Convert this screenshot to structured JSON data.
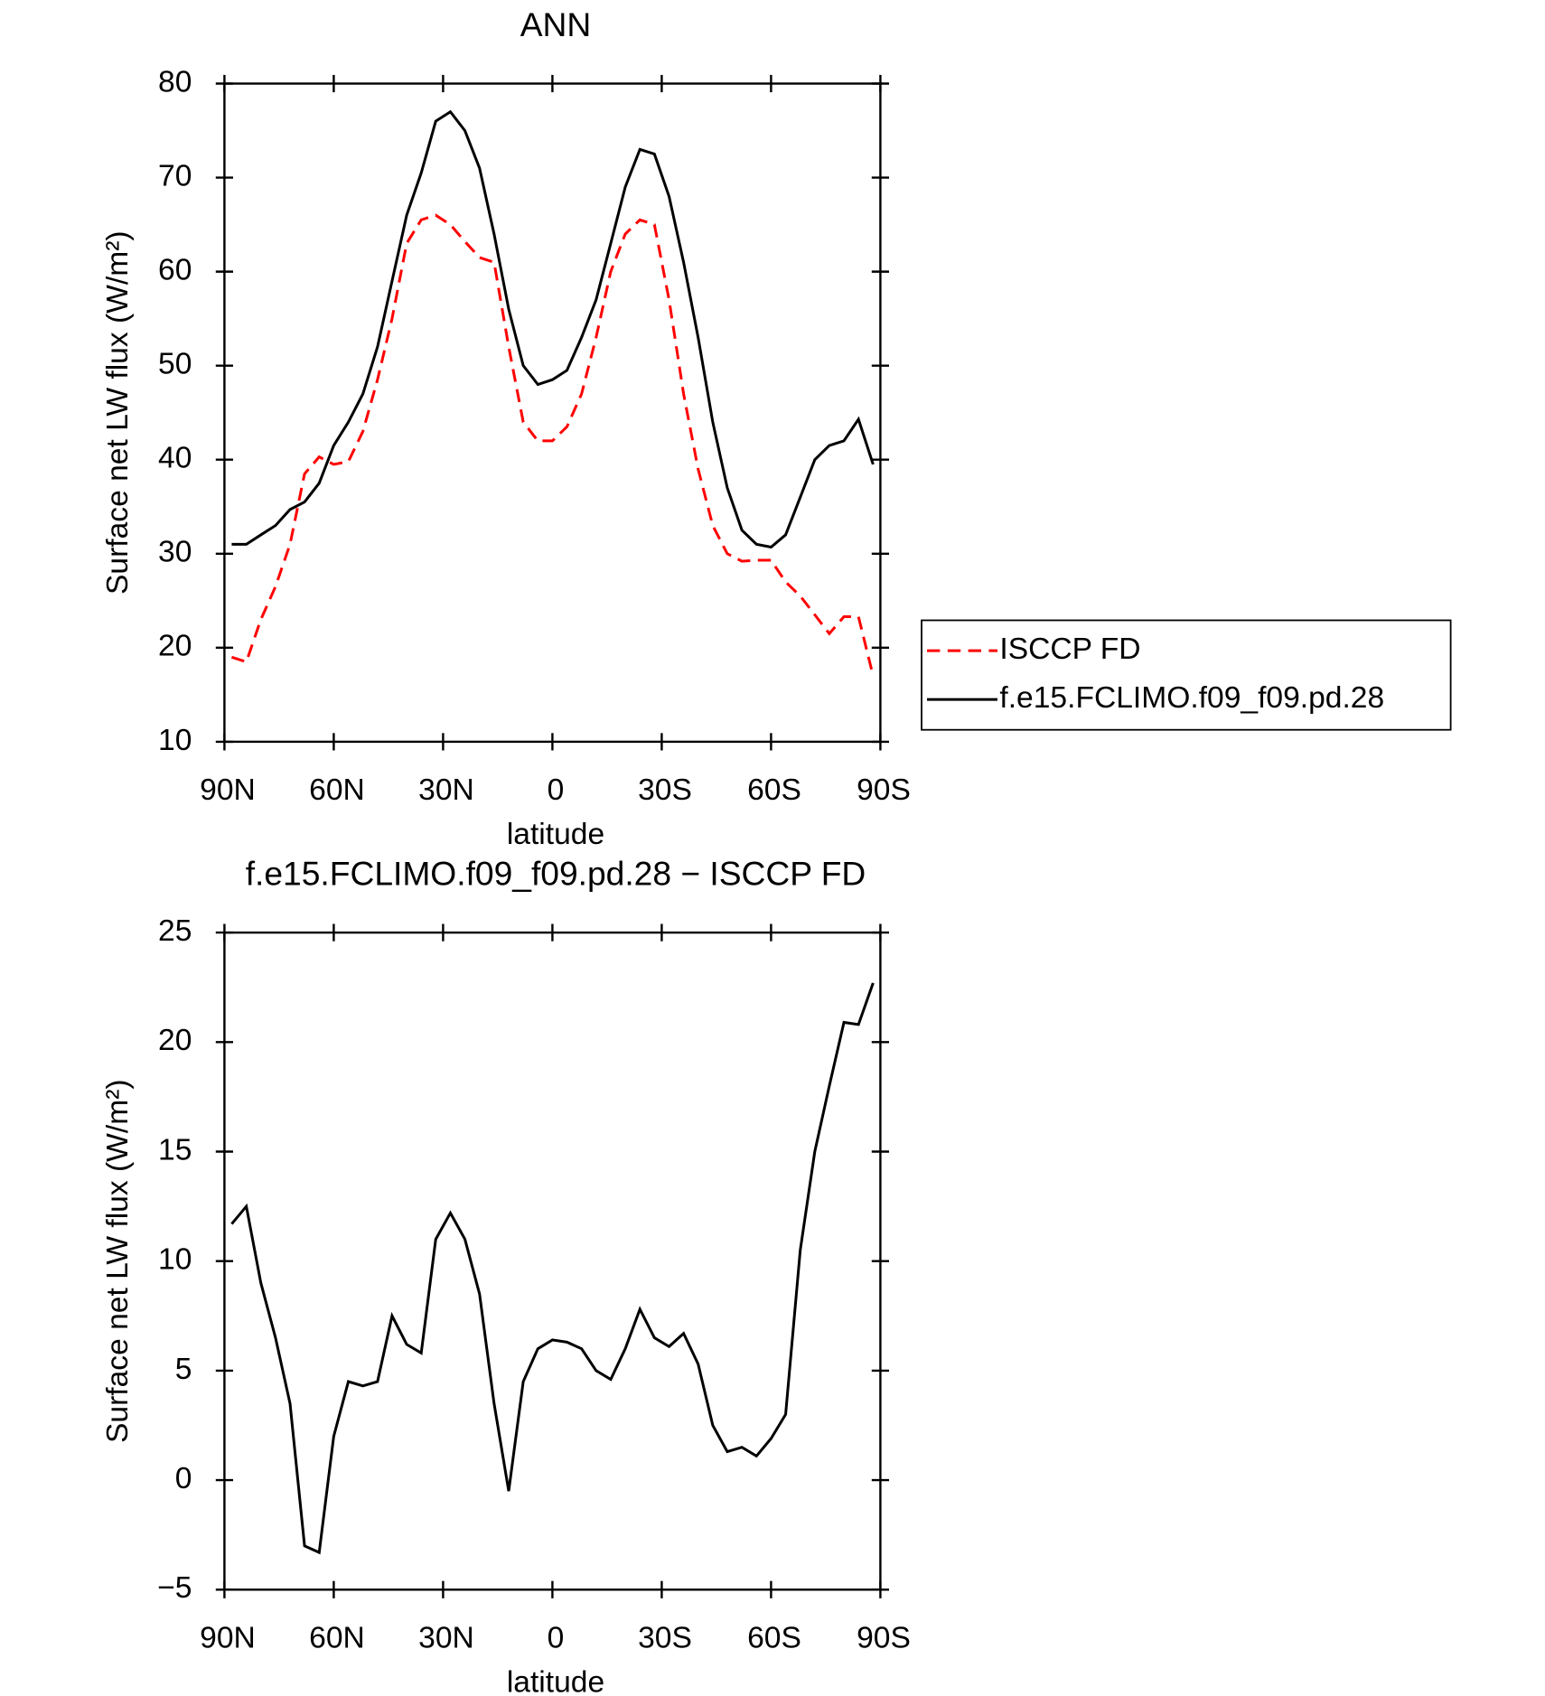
{
  "chart_data": [
    {
      "type": "line",
      "title": "ANN",
      "xlabel": "latitude",
      "ylabel": "Surface net LW flux (W/m²)",
      "x": [
        88,
        84,
        80,
        76,
        72,
        68,
        64,
        60,
        56,
        52,
        48,
        44,
        40,
        36,
        32,
        28,
        24,
        20,
        16,
        12,
        8,
        4,
        0,
        -4,
        -8,
        -12,
        -16,
        -20,
        -24,
        -28,
        -32,
        -36,
        -40,
        -44,
        -48,
        -52,
        -56,
        -60,
        -64,
        -68,
        -72,
        -76,
        -80,
        -84,
        -88
      ],
      "series": [
        {
          "name": "ISCCP FD",
          "color": "#ff0000",
          "dash": "dashed",
          "values": [
            19,
            18.5,
            23,
            26.5,
            31,
            38.5,
            40.3,
            39.5,
            39.8,
            43,
            48.5,
            55,
            63,
            65.5,
            66,
            65,
            63.2,
            61.5,
            61,
            52,
            44,
            42,
            42,
            43.5,
            47,
            53,
            60,
            64,
            65.5,
            65,
            57,
            47,
            39,
            33,
            30,
            29.2,
            29.3,
            29.3,
            27,
            25.5,
            23.5,
            21.5,
            23.3,
            23.3,
            17
          ]
        },
        {
          "name": "f.e15.FCLIMO.f09_f09.pd.28",
          "color": "#000000",
          "dash": "solid",
          "values": [
            31,
            31,
            32,
            33,
            34.7,
            35.5,
            37.5,
            41.5,
            44,
            47,
            52,
            59,
            66,
            70.5,
            76,
            77,
            75,
            71,
            64,
            56,
            50,
            48,
            48.5,
            49.5,
            53,
            57,
            63,
            69,
            73,
            72.5,
            68,
            61,
            53,
            44,
            37,
            32.5,
            31,
            30.7,
            32,
            36,
            40,
            41.5,
            42,
            44.3,
            39.5
          ]
        }
      ],
      "xlim": [
        90,
        -90
      ],
      "xticks": [
        {
          "value": 90,
          "label": "90N"
        },
        {
          "value": 60,
          "label": "60N"
        },
        {
          "value": 30,
          "label": "30N"
        },
        0,
        {
          "value": -30,
          "label": "30S"
        },
        {
          "value": -60,
          "label": "60S"
        },
        {
          "value": -90,
          "label": "90S"
        }
      ],
      "ylim": [
        10,
        80
      ],
      "yticks": [
        10,
        20,
        30,
        40,
        50,
        60,
        70,
        80
      ],
      "legend": "right"
    },
    {
      "type": "line",
      "title": "f.e15.FCLIMO.f09_f09.pd.28 − ISCCP FD",
      "xlabel": "latitude",
      "ylabel": "Surface net LW flux (W/m²)",
      "x": [
        88,
        84,
        80,
        76,
        72,
        68,
        64,
        60,
        56,
        52,
        48,
        44,
        40,
        36,
        32,
        28,
        24,
        20,
        16,
        12,
        8,
        4,
        0,
        -4,
        -8,
        -12,
        -16,
        -20,
        -24,
        -28,
        -32,
        -36,
        -40,
        -44,
        -48,
        -52,
        -56,
        -60,
        -64,
        -68,
        -72,
        -76,
        -80,
        -84,
        -88
      ],
      "series": [
        {
          "color": "#000000",
          "dash": "solid",
          "values": [
            11.7,
            12.5,
            9,
            6.5,
            3.5,
            -3,
            -3.3,
            2,
            4.5,
            4.3,
            4.5,
            7.5,
            6.2,
            5.8,
            11,
            12.2,
            11,
            8.5,
            3.5,
            -0.5,
            4.5,
            6,
            6.4,
            6.3,
            6,
            5,
            4.6,
            6,
            7.8,
            6.5,
            6.1,
            6.7,
            5.3,
            2.5,
            1.3,
            1.5,
            1.1,
            1.9,
            3,
            10.5,
            15,
            18,
            20.9,
            20.8,
            22.7
          ]
        }
      ],
      "xlim": [
        90,
        -90
      ],
      "xticks": [
        {
          "value": 90,
          "label": "90N"
        },
        {
          "value": 60,
          "label": "60N"
        },
        {
          "value": 30,
          "label": "30N"
        },
        0,
        {
          "value": -30,
          "label": "30S"
        },
        {
          "value": -60,
          "label": "60S"
        },
        {
          "value": -90,
          "label": "90S"
        }
      ],
      "ylim": [
        -5,
        25
      ],
      "yticks": [
        {
          "value": -5,
          "label": "−5"
        },
        0,
        5,
        10,
        15,
        20,
        25
      ]
    }
  ]
}
